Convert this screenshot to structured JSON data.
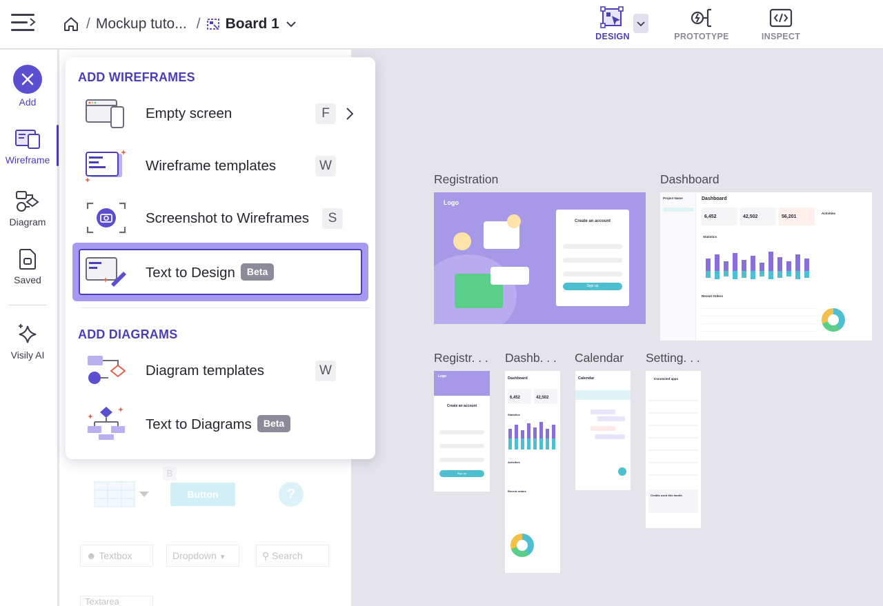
{
  "header": {
    "breadcrumb_project": "Mockup tuto...",
    "breadcrumb_sep": "/",
    "board_name": "Board 1",
    "modes": [
      {
        "label": "DESIGN",
        "icon": "design-icon",
        "active": true
      },
      {
        "label": "PROTOTYPE",
        "icon": "prototype-icon",
        "active": false
      },
      {
        "label": "INSPECT",
        "icon": "inspect-icon",
        "active": false
      }
    ]
  },
  "rail": {
    "items": [
      {
        "label": "Add",
        "icon": "close-icon"
      },
      {
        "label": "Wireframe",
        "icon": "wireframe-icon"
      },
      {
        "label": "Diagram",
        "icon": "diagram-icon"
      },
      {
        "label": "Saved",
        "icon": "saved-icon"
      },
      {
        "label": "Visily AI",
        "icon": "sparkle-icon"
      }
    ]
  },
  "menu": {
    "wireframes_header": "ADD WIREFRAMES",
    "diagrams_header": "ADD DIAGRAMS",
    "items": [
      {
        "label": "Empty screen",
        "key": "F",
        "icon": "empty-screen-icon"
      },
      {
        "label": "Wireframe templates",
        "key": "W",
        "icon": "wireframe-templates-icon"
      },
      {
        "label": "Screenshot to Wireframes",
        "key": "S",
        "icon": "screenshot-icon"
      },
      {
        "label": "Text to Design",
        "badge": "Beta",
        "icon": "text-to-design-icon"
      },
      {
        "label": "Diagram templates",
        "key": "W",
        "icon": "diagram-templates-icon"
      },
      {
        "label": "Text to Diagrams",
        "badge": "Beta",
        "icon": "text-to-diagrams-icon"
      }
    ]
  },
  "panel_ghost": {
    "shortcut": "B",
    "button": "Button",
    "help": "?",
    "textbox": "Textbox",
    "dropdown": "Dropdown",
    "search": "Search",
    "textarea": "Textarea"
  },
  "canvas": {
    "screens": [
      {
        "label": "Registration"
      },
      {
        "label": "Dashboard"
      },
      {
        "label": "Registr. . ."
      },
      {
        "label": "Dashb. . ."
      },
      {
        "label": "Calendar"
      },
      {
        "label": "Setting. . ."
      }
    ],
    "registration": {
      "logo": "Logo",
      "form_title": "Create an account",
      "signup": "Sign up"
    },
    "dashboard": {
      "title": "Dashboard",
      "project": "Project Name",
      "kpis": [
        "6,452",
        "42,502",
        "56,201"
      ],
      "statistics": "Statistics",
      "recent_orders": "Recent Orders",
      "activities": "Activities"
    },
    "mobile_reg": {
      "logo": "Logo",
      "title": "Create an account",
      "signup": "Sign up"
    },
    "mobile_dash": {
      "title": "Dashboard",
      "kpis": [
        "6,452",
        "42,502"
      ],
      "statistics": "Statistics",
      "activities": "Activities",
      "recent_orders": "Recent orders"
    },
    "mobile_cal": {
      "title": "Calendar"
    },
    "mobile_settings": {
      "title": "Connected apps",
      "credits": "Credits used this month"
    }
  },
  "colors": {
    "accent": "#4b3fb8",
    "purple_fill": "#9c8ef0",
    "teal": "#4dbfd0"
  }
}
